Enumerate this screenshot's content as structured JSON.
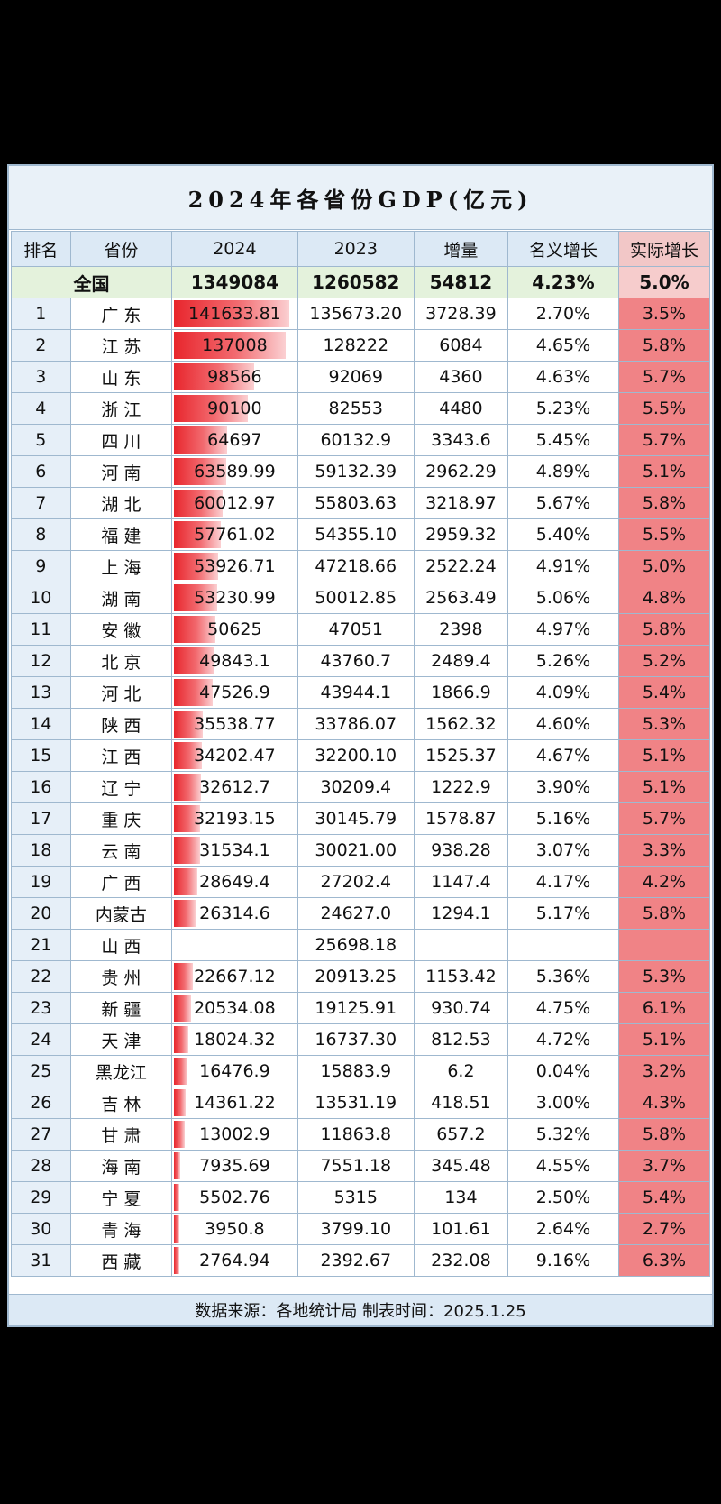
{
  "title": "2024年各省份GDP(亿元)",
  "headers": [
    "排名",
    "省份",
    "2024",
    "2023",
    "增量",
    "名义增长",
    "实际增长"
  ],
  "national": {
    "label": "全国",
    "g2024": "1349084",
    "g2023": "1260582",
    "inc": "54812",
    "nominal": "4.23%",
    "real": "5.0%"
  },
  "rows": [
    {
      "rank": "1",
      "prov": "广 东",
      "g2024": "141633.81",
      "g2023": "135673.20",
      "inc": "3728.39",
      "nominal": "2.70%",
      "real": "3.5%",
      "gdp": 141633.81
    },
    {
      "rank": "2",
      "prov": "江 苏",
      "g2024": "137008",
      "g2023": "128222",
      "inc": "6084",
      "nominal": "4.65%",
      "real": "5.8%",
      "gdp": 137008
    },
    {
      "rank": "3",
      "prov": "山 东",
      "g2024": "98566",
      "g2023": "92069",
      "inc": "4360",
      "nominal": "4.63%",
      "real": "5.7%",
      "gdp": 98566
    },
    {
      "rank": "4",
      "prov": "浙 江",
      "g2024": "90100",
      "g2023": "82553",
      "inc": "4480",
      "nominal": "5.23%",
      "real": "5.5%",
      "gdp": 90100
    },
    {
      "rank": "5",
      "prov": "四 川",
      "g2024": "64697",
      "g2023": "60132.9",
      "inc": "3343.6",
      "nominal": "5.45%",
      "real": "5.7%",
      "gdp": 64697
    },
    {
      "rank": "6",
      "prov": "河 南",
      "g2024": "63589.99",
      "g2023": "59132.39",
      "inc": "2962.29",
      "nominal": "4.89%",
      "real": "5.1%",
      "gdp": 63589.99
    },
    {
      "rank": "7",
      "prov": "湖 北",
      "g2024": "60012.97",
      "g2023": "55803.63",
      "inc": "3218.97",
      "nominal": "5.67%",
      "real": "5.8%",
      "gdp": 60012.97
    },
    {
      "rank": "8",
      "prov": "福 建",
      "g2024": "57761.02",
      "g2023": "54355.10",
      "inc": "2959.32",
      "nominal": "5.40%",
      "real": "5.5%",
      "gdp": 57761.02
    },
    {
      "rank": "9",
      "prov": "上 海",
      "g2024": "53926.71",
      "g2023": "47218.66",
      "inc": "2522.24",
      "nominal": "4.91%",
      "real": "5.0%",
      "gdp": 53926.71
    },
    {
      "rank": "10",
      "prov": "湖 南",
      "g2024": "53230.99",
      "g2023": "50012.85",
      "inc": "2563.49",
      "nominal": "5.06%",
      "real": "4.8%",
      "gdp": 53230.99
    },
    {
      "rank": "11",
      "prov": "安 徽",
      "g2024": "50625",
      "g2023": "47051",
      "inc": "2398",
      "nominal": "4.97%",
      "real": "5.8%",
      "gdp": 50625
    },
    {
      "rank": "12",
      "prov": "北 京",
      "g2024": "49843.1",
      "g2023": "43760.7",
      "inc": "2489.4",
      "nominal": "5.26%",
      "real": "5.2%",
      "gdp": 49843.1
    },
    {
      "rank": "13",
      "prov": "河 北",
      "g2024": "47526.9",
      "g2023": "43944.1",
      "inc": "1866.9",
      "nominal": "4.09%",
      "real": "5.4%",
      "gdp": 47526.9
    },
    {
      "rank": "14",
      "prov": "陕 西",
      "g2024": "35538.77",
      "g2023": "33786.07",
      "inc": "1562.32",
      "nominal": "4.60%",
      "real": "5.3%",
      "gdp": 35538.77
    },
    {
      "rank": "15",
      "prov": "江 西",
      "g2024": "34202.47",
      "g2023": "32200.10",
      "inc": "1525.37",
      "nominal": "4.67%",
      "real": "5.1%",
      "gdp": 34202.47
    },
    {
      "rank": "16",
      "prov": "辽 宁",
      "g2024": "32612.7",
      "g2023": "30209.4",
      "inc": "1222.9",
      "nominal": "3.90%",
      "real": "5.1%",
      "gdp": 32612.7
    },
    {
      "rank": "17",
      "prov": "重 庆",
      "g2024": "32193.15",
      "g2023": "30145.79",
      "inc": "1578.87",
      "nominal": "5.16%",
      "real": "5.7%",
      "gdp": 32193.15
    },
    {
      "rank": "18",
      "prov": "云 南",
      "g2024": "31534.1",
      "g2023": "30021.00",
      "inc": "938.28",
      "nominal": "3.07%",
      "real": "3.3%",
      "gdp": 31534.1
    },
    {
      "rank": "19",
      "prov": "广 西",
      "g2024": "28649.4",
      "g2023": "27202.4",
      "inc": "1147.4",
      "nominal": "4.17%",
      "real": "4.2%",
      "gdp": 28649.4
    },
    {
      "rank": "20",
      "prov": "内蒙古",
      "g2024": "26314.6",
      "g2023": "24627.0",
      "inc": "1294.1",
      "nominal": "5.17%",
      "real": "5.8%",
      "gdp": 26314.6
    },
    {
      "rank": "21",
      "prov": "山 西",
      "g2024": "",
      "g2023": "25698.18",
      "inc": "",
      "nominal": "",
      "real": "",
      "gdp": 0
    },
    {
      "rank": "22",
      "prov": "贵 州",
      "g2024": "22667.12",
      "g2023": "20913.25",
      "inc": "1153.42",
      "nominal": "5.36%",
      "real": "5.3%",
      "gdp": 22667.12
    },
    {
      "rank": "23",
      "prov": "新 疆",
      "g2024": "20534.08",
      "g2023": "19125.91",
      "inc": "930.74",
      "nominal": "4.75%",
      "real": "6.1%",
      "gdp": 20534.08
    },
    {
      "rank": "24",
      "prov": "天 津",
      "g2024": "18024.32",
      "g2023": "16737.30",
      "inc": "812.53",
      "nominal": "4.72%",
      "real": "5.1%",
      "gdp": 18024.32
    },
    {
      "rank": "25",
      "prov": "黑龙江",
      "g2024": "16476.9",
      "g2023": "15883.9",
      "inc": "6.2",
      "nominal": "0.04%",
      "real": "3.2%",
      "gdp": 16476.9
    },
    {
      "rank": "26",
      "prov": "吉 林",
      "g2024": "14361.22",
      "g2023": "13531.19",
      "inc": "418.51",
      "nominal": "3.00%",
      "real": "4.3%",
      "gdp": 14361.22
    },
    {
      "rank": "27",
      "prov": "甘 肃",
      "g2024": "13002.9",
      "g2023": "11863.8",
      "inc": "657.2",
      "nominal": "5.32%",
      "real": "5.8%",
      "gdp": 13002.9
    },
    {
      "rank": "28",
      "prov": "海 南",
      "g2024": "7935.69",
      "g2023": "7551.18",
      "inc": "345.48",
      "nominal": "4.55%",
      "real": "3.7%",
      "gdp": 7935.69
    },
    {
      "rank": "29",
      "prov": "宁 夏",
      "g2024": "5502.76",
      "g2023": "5315",
      "inc": "134",
      "nominal": "2.50%",
      "real": "5.4%",
      "gdp": 5502.76
    },
    {
      "rank": "30",
      "prov": "青 海",
      "g2024": "3950.8",
      "g2023": "3799.10",
      "inc": "101.61",
      "nominal": "2.64%",
      "real": "2.7%",
      "gdp": 3950.8
    },
    {
      "rank": "31",
      "prov": "西 藏",
      "g2024": "2764.94",
      "g2023": "2392.67",
      "inc": "232.08",
      "nominal": "9.16%",
      "real": "6.3%",
      "gdp": 2764.94
    }
  ],
  "footer": "数据来源：各地统计局    制表时间：2025.1.25",
  "colors": {
    "bar": "#e8262d",
    "real_bg": "#f08386",
    "header_bg": "#dce9f5",
    "national_bg": "#e4f2dc"
  }
}
